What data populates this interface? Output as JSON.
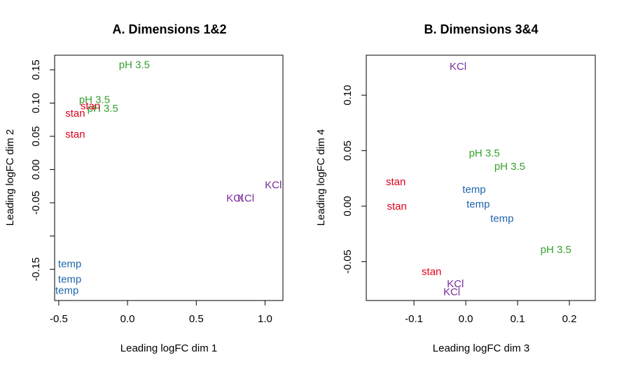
{
  "colors": {
    "stan": "#e0001b",
    "pH 3.5": "#33a02c",
    "KCl": "#7b2c9e",
    "temp": "#2166ac"
  },
  "chart_data": [
    {
      "type": "scatter",
      "title": "A. Dimensions 1&2",
      "xlabel": "Leading logFC dim 1",
      "ylabel": "Leading logFC dim 2",
      "xlim": [
        -0.53,
        1.13
      ],
      "ylim": [
        -0.197,
        0.172
      ],
      "xticks": [
        {
          "value": -0.5,
          "label": "-0.5"
        },
        {
          "value": 0.0,
          "label": "0.0"
        },
        {
          "value": 0.5,
          "label": "0.5"
        },
        {
          "value": 1.0,
          "label": "1.0"
        }
      ],
      "yticks": [
        {
          "value": -0.15,
          "label": "-0.15"
        },
        {
          "value": -0.1,
          "label": ""
        },
        {
          "value": -0.05,
          "label": "-0.05"
        },
        {
          "value": 0.0,
          "label": "0.00"
        },
        {
          "value": 0.05,
          "label": "0.05"
        },
        {
          "value": 0.1,
          "label": "0.10"
        },
        {
          "value": 0.15,
          "label": "0.15"
        }
      ],
      "points": [
        {
          "label": "pH 3.5",
          "x": 0.05,
          "y": 0.158
        },
        {
          "label": "pH 3.5",
          "x": -0.24,
          "y": 0.105
        },
        {
          "label": "pH 3.5",
          "x": -0.18,
          "y": 0.092
        },
        {
          "label": "stan",
          "x": -0.38,
          "y": 0.085
        },
        {
          "label": "stan",
          "x": -0.27,
          "y": 0.096
        },
        {
          "label": "stan",
          "x": -0.38,
          "y": 0.053
        },
        {
          "label": "KCl",
          "x": 1.06,
          "y": -0.023
        },
        {
          "label": "KCl",
          "x": 0.78,
          "y": -0.043
        },
        {
          "label": "KCl",
          "x": 0.86,
          "y": -0.043
        },
        {
          "label": "temp",
          "x": -0.42,
          "y": -0.142
        },
        {
          "label": "temp",
          "x": -0.42,
          "y": -0.165
        },
        {
          "label": "temp",
          "x": -0.44,
          "y": -0.182
        }
      ]
    },
    {
      "type": "scatter",
      "title": "B. Dimensions 3&4",
      "xlabel": "Leading logFC dim 3",
      "ylabel": "Leading logFC dim 4",
      "xlim": [
        -0.192,
        0.25
      ],
      "ylim": [
        -0.085,
        0.136
      ],
      "xticks": [
        {
          "value": -0.1,
          "label": "-0.1"
        },
        {
          "value": 0.0,
          "label": "0.0"
        },
        {
          "value": 0.1,
          "label": "0.1"
        },
        {
          "value": 0.2,
          "label": "0.2"
        }
      ],
      "yticks": [
        {
          "value": -0.05,
          "label": "-0.05"
        },
        {
          "value": 0.0,
          "label": "0.00"
        },
        {
          "value": 0.05,
          "label": "0.05"
        },
        {
          "value": 0.1,
          "label": "0.10"
        }
      ],
      "points": [
        {
          "label": "KCl",
          "x": -0.015,
          "y": 0.126
        },
        {
          "label": "KCl",
          "x": -0.02,
          "y": -0.07
        },
        {
          "label": "KCl",
          "x": -0.027,
          "y": -0.077
        },
        {
          "label": "pH 3.5",
          "x": 0.036,
          "y": 0.048
        },
        {
          "label": "pH 3.5",
          "x": 0.085,
          "y": 0.036
        },
        {
          "label": "pH 3.5",
          "x": 0.174,
          "y": -0.039
        },
        {
          "label": "stan",
          "x": -0.135,
          "y": 0.022
        },
        {
          "label": "stan",
          "x": -0.133,
          "y": 0.0
        },
        {
          "label": "stan",
          "x": -0.066,
          "y": -0.059
        },
        {
          "label": "temp",
          "x": 0.016,
          "y": 0.015
        },
        {
          "label": "temp",
          "x": 0.024,
          "y": 0.002
        },
        {
          "label": "temp",
          "x": 0.07,
          "y": -0.011
        }
      ]
    }
  ]
}
